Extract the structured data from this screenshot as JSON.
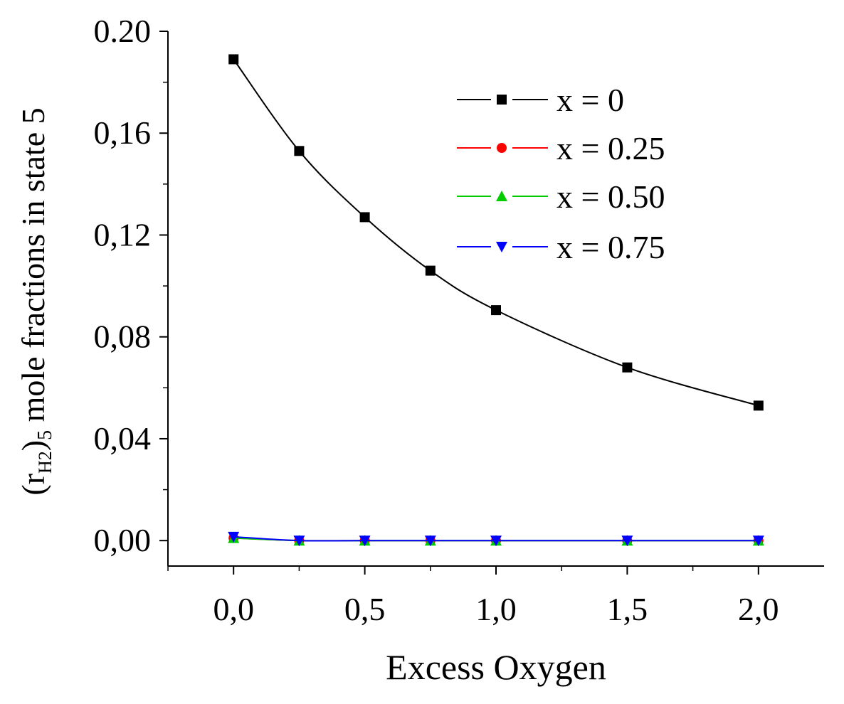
{
  "chart_data": {
    "type": "line",
    "title": "",
    "xlabel": "Excess Oxygen",
    "ylabel": {
      "open": "(r",
      "sub": "H2",
      "close": ")",
      "sub2": "5",
      "rest": " mole fractions in state 5"
    },
    "xlim": [
      -0.25,
      2.25
    ],
    "ylim": [
      -0.01,
      0.2
    ],
    "x_ticks": [
      {
        "value": 0.0,
        "label": "0,0"
      },
      {
        "value": 0.5,
        "label": "0,5"
      },
      {
        "value": 1.0,
        "label": "1,0"
      },
      {
        "value": 1.5,
        "label": "1,5"
      },
      {
        "value": 2.0,
        "label": "2,0"
      }
    ],
    "y_ticks": [
      {
        "value": 0.0,
        "label": "0,00"
      },
      {
        "value": 0.04,
        "label": "0,04"
      },
      {
        "value": 0.08,
        "label": "0,08"
      },
      {
        "value": 0.12,
        "label": "0,12"
      },
      {
        "value": 0.16,
        "label": "0,16"
      },
      {
        "value": 0.2,
        "label": "0.20"
      }
    ],
    "legend_position": "top-right",
    "x": [
      0.0,
      0.25,
      0.5,
      0.75,
      1.0,
      1.5,
      2.0
    ],
    "series": [
      {
        "name": "x = 0",
        "color": "#000000",
        "marker": "square",
        "values": [
          0.189,
          0.153,
          0.127,
          0.106,
          0.0905,
          0.068,
          0.053
        ]
      },
      {
        "name": "x = 0.25",
        "color": "#ff0000",
        "marker": "circle",
        "values": [
          0.001,
          0.0,
          0.0,
          0.0,
          0.0,
          0.0,
          0.0
        ]
      },
      {
        "name": "x = 0.50",
        "color": "#00cc00",
        "marker": "triangle-up",
        "values": [
          0.001,
          0.0,
          0.0,
          0.0,
          0.0,
          0.0,
          0.0
        ]
      },
      {
        "name": "x = 0.75",
        "color": "#0000ff",
        "marker": "triangle-down",
        "values": [
          0.0015,
          0.0,
          0.0,
          0.0,
          0.0,
          0.0,
          0.0
        ]
      }
    ]
  }
}
